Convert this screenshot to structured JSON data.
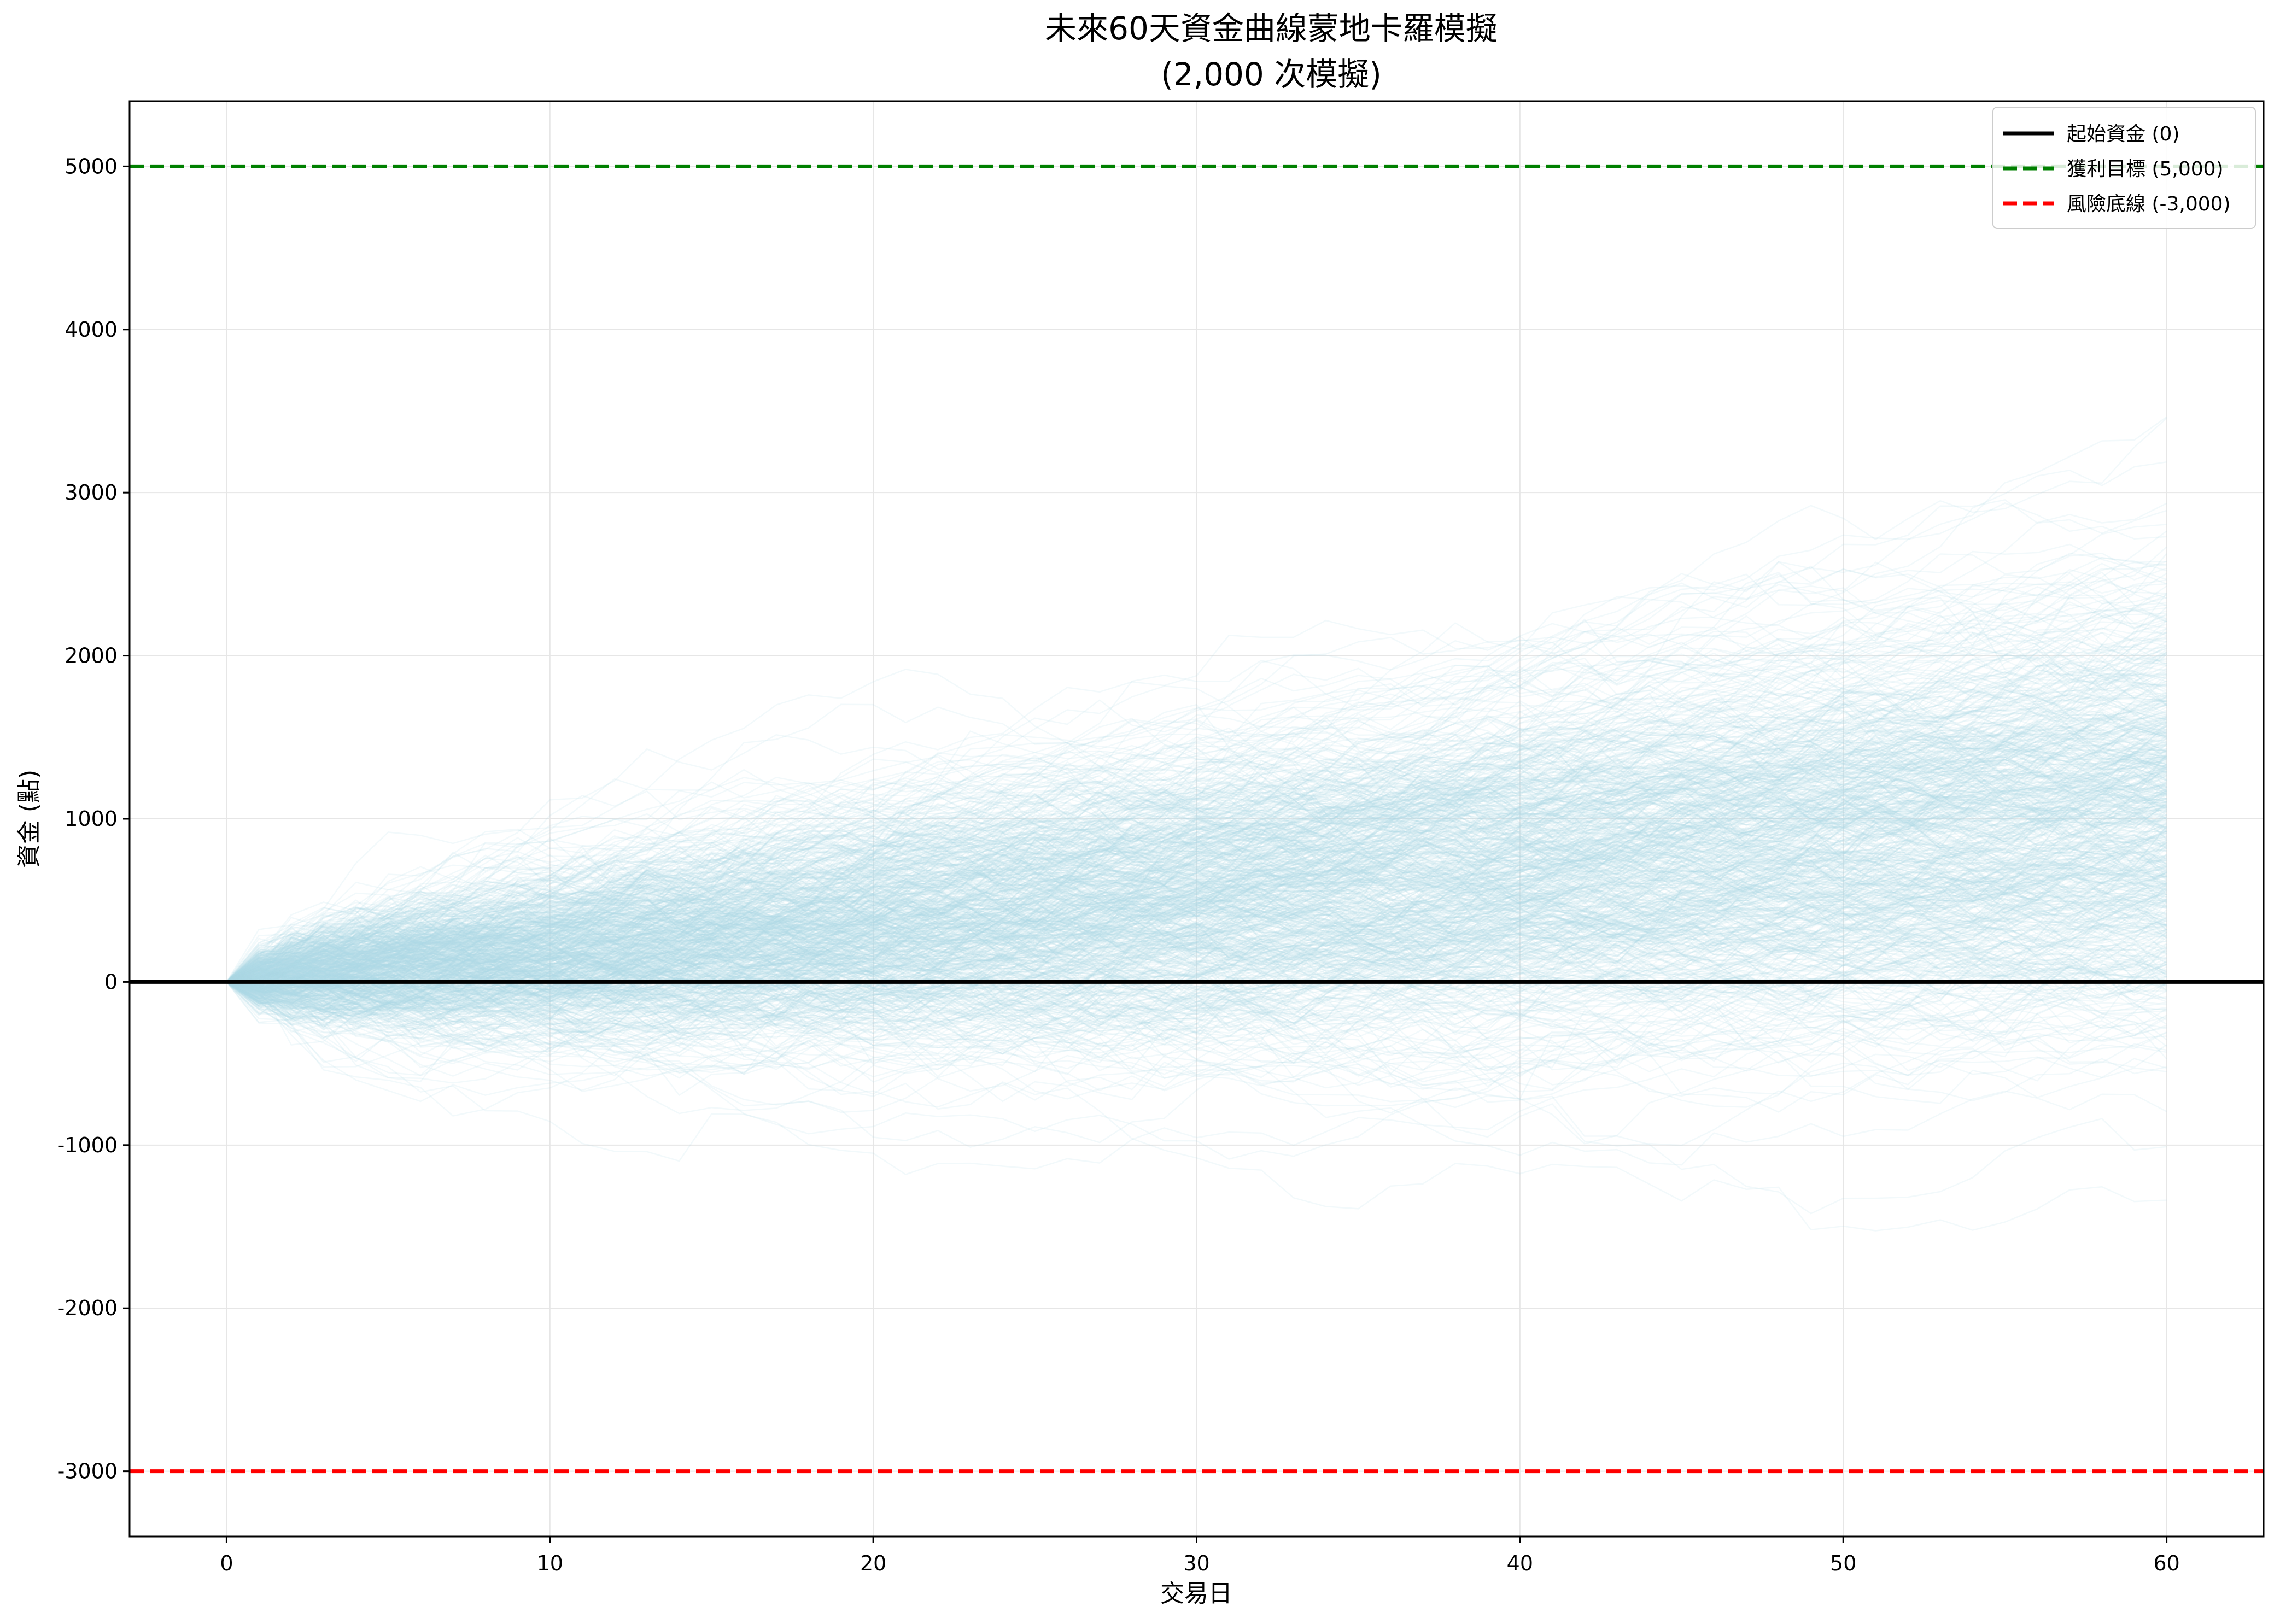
{
  "chart_data": {
    "type": "line",
    "title": "未來60天資金曲線蒙地卡羅模擬",
    "subtitle": "(2,000 次模擬)",
    "xlabel": "交易日",
    "ylabel": "資金 (點)",
    "xlim": [
      -3,
      63
    ],
    "ylim": [
      -3400,
      5400
    ],
    "xticks": [
      0,
      10,
      20,
      30,
      40,
      50,
      60
    ],
    "yticks": [
      -3000,
      -2000,
      -1000,
      0,
      1000,
      2000,
      3000,
      4000,
      5000
    ],
    "grid": true,
    "legend_position": "top-right",
    "simulation": {
      "n_days": 60,
      "drift_per_day": 18,
      "std_per_day": 90,
      "line_color": "#add8e6"
    },
    "reference_lines": [
      {
        "name": "起始資金 (0)",
        "y": 0,
        "color": "#000000",
        "style": "solid"
      },
      {
        "name": "獲利目標 (5,000)",
        "y": 5000,
        "color": "#008000",
        "style": "dashed"
      },
      {
        "name": "風險底線 (-3,000)",
        "y": -3000,
        "color": "#ff0000",
        "style": "dashed"
      }
    ]
  }
}
